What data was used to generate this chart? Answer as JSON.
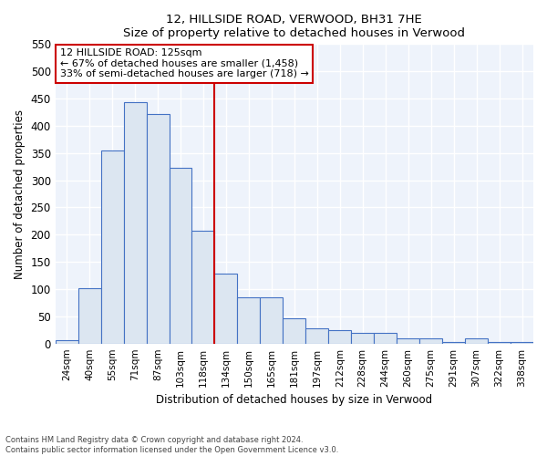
{
  "title": "12, HILLSIDE ROAD, VERWOOD, BH31 7HE",
  "subtitle": "Size of property relative to detached houses in Verwood",
  "xlabel": "Distribution of detached houses by size in Verwood",
  "ylabel": "Number of detached properties",
  "footnote1": "Contains HM Land Registry data © Crown copyright and database right 2024.",
  "footnote2": "Contains public sector information licensed under the Open Government Licence v3.0.",
  "bar_labels": [
    "24sqm",
    "40sqm",
    "55sqm",
    "71sqm",
    "87sqm",
    "103sqm",
    "118sqm",
    "134sqm",
    "150sqm",
    "165sqm",
    "181sqm",
    "197sqm",
    "212sqm",
    "228sqm",
    "244sqm",
    "260sqm",
    "275sqm",
    "291sqm",
    "307sqm",
    "322sqm",
    "338sqm"
  ],
  "bar_values": [
    7,
    101,
    354,
    444,
    422,
    322,
    208,
    129,
    85,
    85,
    47,
    28,
    25,
    19,
    19,
    9,
    9,
    2,
    9,
    2,
    2
  ],
  "bar_color": "#dce6f1",
  "bar_edge_color": "#4472c4",
  "vline_x_idx": 6,
  "vline_color": "#cc0000",
  "ylim": [
    0,
    550
  ],
  "yticks": [
    0,
    50,
    100,
    150,
    200,
    250,
    300,
    350,
    400,
    450,
    500,
    550
  ],
  "annotation_title": "12 HILLSIDE ROAD: 125sqm",
  "annotation_line1": "← 67% of detached houses are smaller (1,458)",
  "annotation_line2": "33% of semi-detached houses are larger (718) →",
  "annotation_box_color": "#ffffff",
  "annotation_box_edge": "#cc0000",
  "plot_bg_color": "#eef3fb",
  "grid_color": "#ffffff"
}
